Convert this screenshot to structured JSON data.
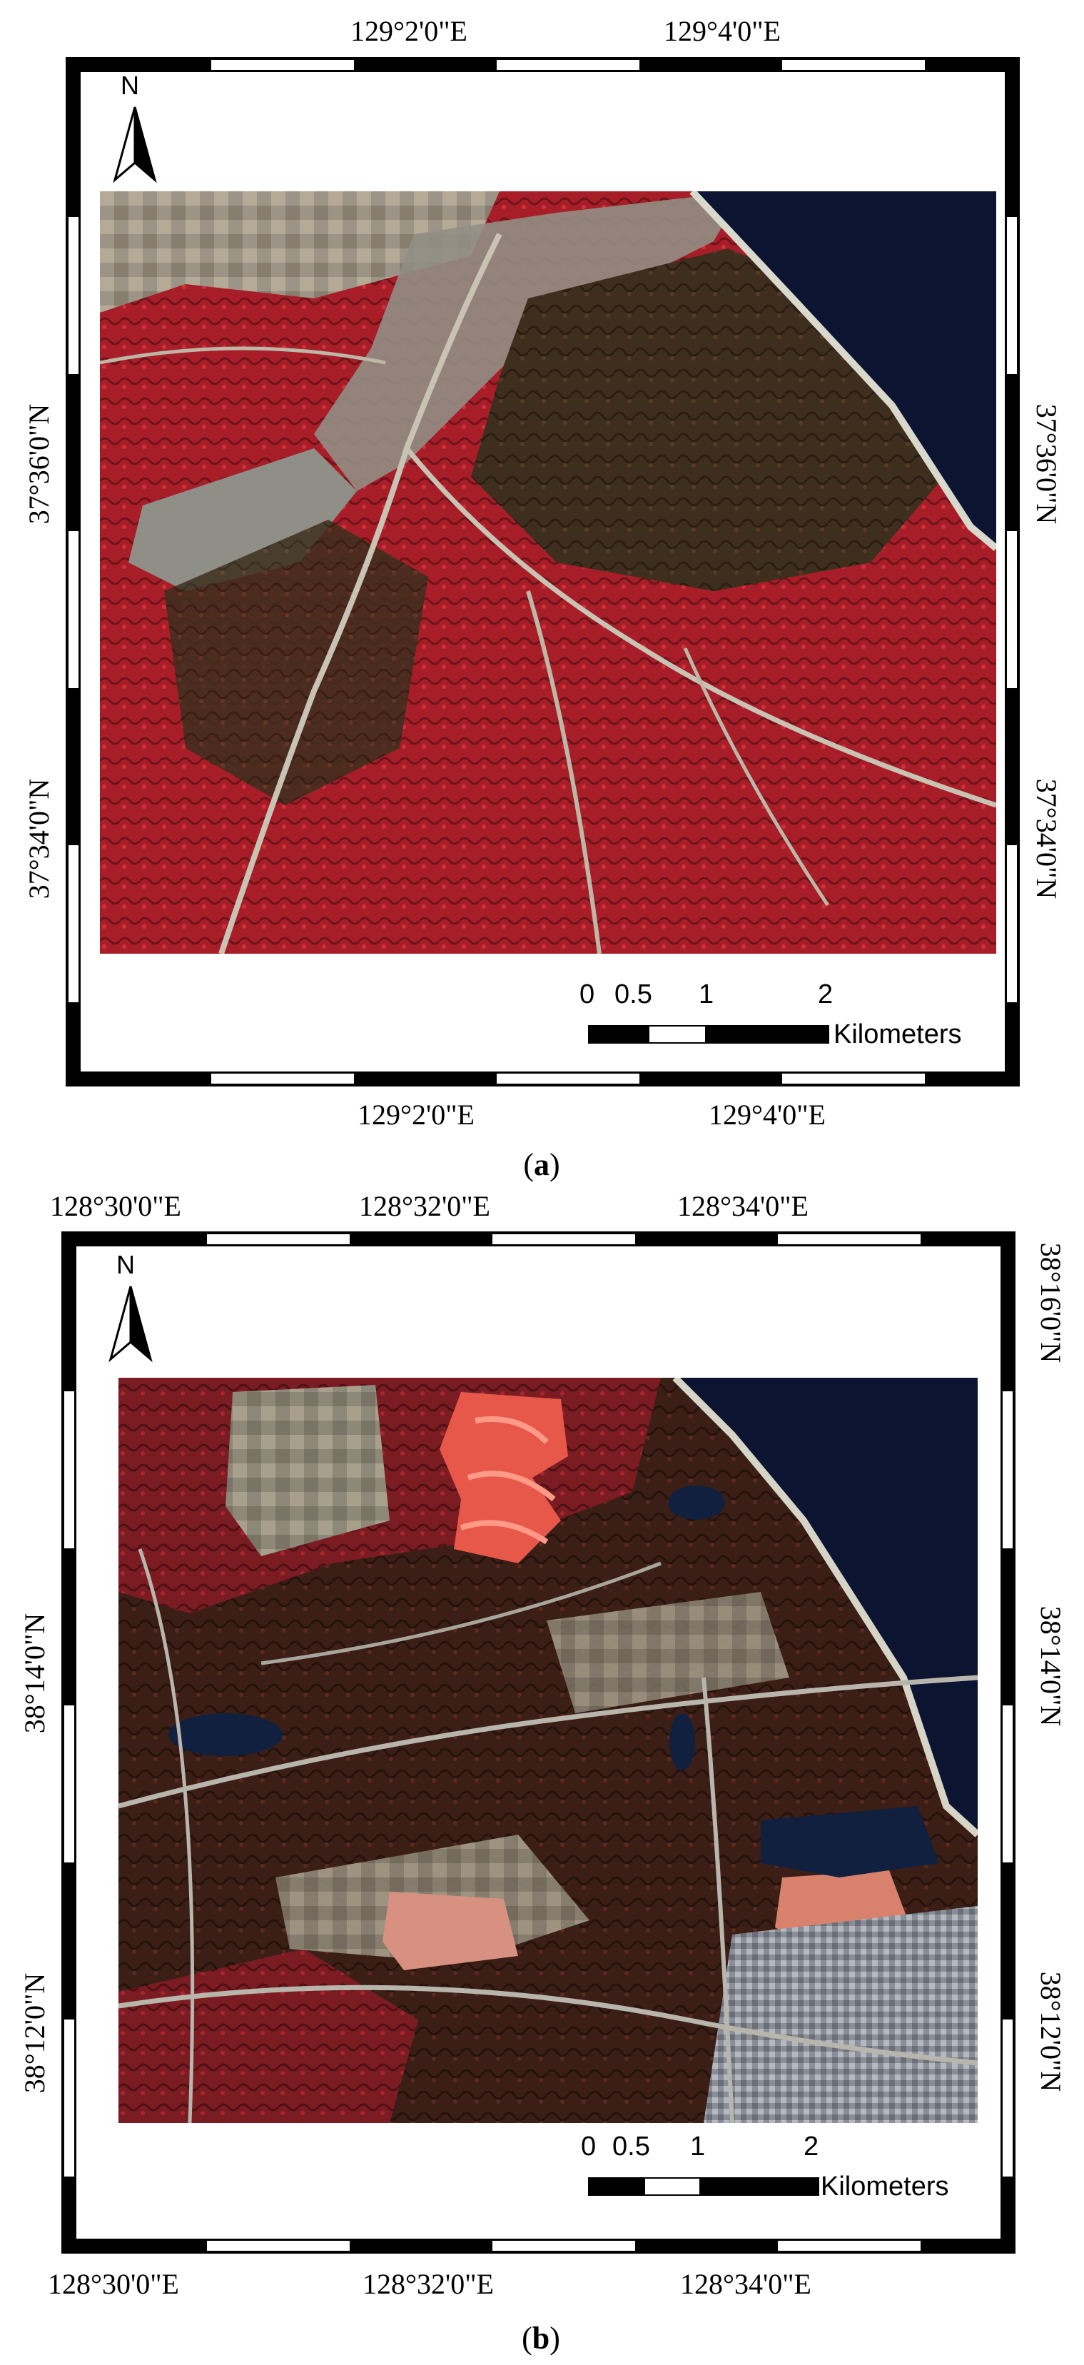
{
  "panels": [
    {
      "id": "a",
      "caption": "a",
      "top_labels": [
        "129°2'0\"E",
        "129°4'0\"E"
      ],
      "bottom_labels": [
        "129°2'0\"E",
        "129°4'0\"E"
      ],
      "left_labels": [
        "37°36'0\"N",
        "37°34'0\"N"
      ],
      "right_labels": [
        "37°36'0\"N",
        "37°34'0\"N"
      ],
      "north": "N",
      "scale": {
        "ticks": [
          "0",
          "0.5",
          "1",
          "2"
        ],
        "unit": "Kilometers"
      }
    },
    {
      "id": "b",
      "caption": "b",
      "top_labels": [
        "128°30'0\"E",
        "128°32'0\"E",
        "128°34'0\"E"
      ],
      "bottom_labels": [
        "128°30'0\"E",
        "128°32'0\"E",
        "128°34'0\"E"
      ],
      "left_labels": [
        "38°14'0\"N",
        "38°12'0\"N"
      ],
      "right_labels": [
        "38°16'0\"N",
        "38°14'0\"N",
        "38°12'0\"N"
      ],
      "north": "N",
      "scale": {
        "ticks": [
          "0",
          "0.5",
          "1",
          "2"
        ],
        "unit": "Kilometers"
      }
    }
  ],
  "colors": {
    "vegetation": "#b0202a",
    "dark_forest": "#3a2a1c",
    "urban": "#9a9a8c",
    "sea": "#0b1430",
    "golf": "#e8584a"
  }
}
